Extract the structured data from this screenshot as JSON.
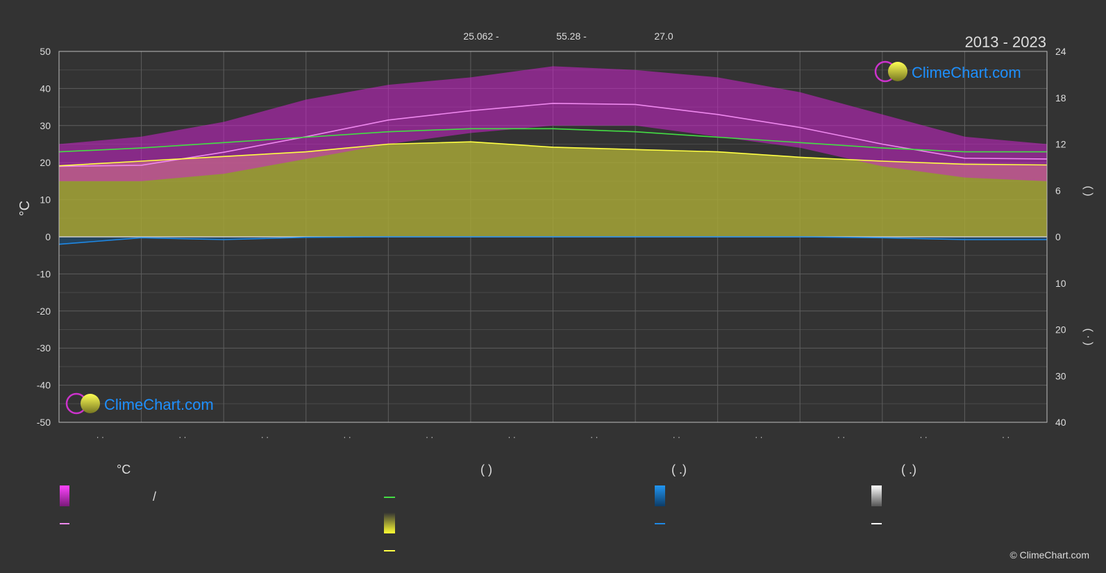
{
  "header": {
    "latitude": "25.062 -",
    "longitude": "55.28 -",
    "elevation": "27.0",
    "period": "2013 - 2023"
  },
  "logo_text": "ClimeChart.com",
  "copyright": "© ClimeChart.com",
  "colors": {
    "background": "#333333",
    "grid": "#666666",
    "day_band": "#cc22cc",
    "day_max": "#ee88ee",
    "sun_line": "#ffff44",
    "sun_fill": "#a6a637",
    "daylight_line": "#44dd44",
    "rain_line": "#1e88e5",
    "brand": "#1e90ff"
  },
  "chart_data": {
    "type": "line",
    "period": "2013 - 2023",
    "months": [
      "·  ·",
      "·  ·",
      "·  ·",
      "·  ·",
      "·  ·",
      "·  ·",
      "·  ·",
      "·  ·",
      "·  ·",
      "·  ·",
      "·  ·",
      "·  ·"
    ],
    "x": [
      0,
      1,
      2,
      3,
      4,
      5,
      6,
      7,
      8,
      9,
      10,
      11,
      12
    ],
    "left_axis": {
      "label": "°C",
      "ylim": [
        -50,
        50
      ],
      "ticks": [
        50,
        40,
        30,
        20,
        10,
        0,
        -10,
        -20,
        -30,
        -40,
        -50
      ]
    },
    "right_axis_top": {
      "ticks": [
        24,
        18,
        12,
        6,
        0
      ],
      "label": "( )"
    },
    "right_axis_bottom": {
      "ticks": [
        0,
        10,
        20,
        30,
        40
      ],
      "label": "( · )"
    },
    "series": [
      {
        "role": "day_max_temperature",
        "values": [
          19.0,
          19.3,
          22.8,
          27.0,
          31.5,
          34.0,
          36.0,
          35.7,
          33.0,
          29.5,
          25.0,
          21.2,
          21.0
        ]
      },
      {
        "role": "daylight_hours",
        "axis": "right_top",
        "values": [
          11.0,
          11.5,
          12.2,
          12.9,
          13.6,
          14.0,
          14.0,
          13.6,
          12.9,
          12.2,
          11.5,
          11.0,
          11.0
        ]
      },
      {
        "role": "sunshine_hours",
        "axis": "right_top",
        "values": [
          9.2,
          9.8,
          10.4,
          11.0,
          12.0,
          12.3,
          11.6,
          11.3,
          11.0,
          10.3,
          9.8,
          9.4,
          9.3
        ]
      },
      {
        "role": "precipitation",
        "axis": "right_bottom",
        "values": [
          1.6,
          0.2,
          0.6,
          0.1,
          0.0,
          0.0,
          0.0,
          0.0,
          0.0,
          0.0,
          0.2,
          0.6,
          0.6
        ]
      }
    ],
    "day_band": {
      "upper": [
        25,
        27,
        31,
        37,
        41,
        43,
        46,
        45,
        43,
        39,
        33,
        27,
        25
      ],
      "lower": [
        15,
        15,
        17,
        21,
        25,
        28,
        30,
        30,
        27,
        24,
        19,
        16,
        15
      ]
    },
    "grid": true
  },
  "legend": [
    {
      "header": "°C",
      "items": [
        {
          "text": "/"
        },
        {
          "text": ""
        }
      ]
    },
    {
      "header": "(          )",
      "items": [
        {
          "text": ""
        },
        {
          "text": ""
        },
        {
          "text": ""
        }
      ]
    },
    {
      "header": "(   .)",
      "items": [
        {
          "text": ""
        },
        {
          "text": ""
        }
      ]
    },
    {
      "header": "(   .)",
      "items": [
        {
          "text": ""
        },
        {
          "text": ""
        }
      ]
    }
  ]
}
